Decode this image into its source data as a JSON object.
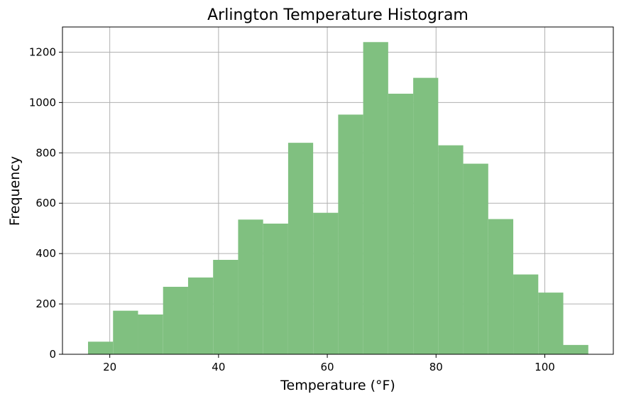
{
  "chart_data": {
    "type": "bar",
    "title": "Arlington Temperature Histogram",
    "xlabel": "Temperature (°F)",
    "ylabel": "Frequency",
    "xlim": [
      11.3,
      112.6
    ],
    "ylim": [
      0,
      1300
    ],
    "x_ticks": [
      20,
      40,
      60,
      80,
      100
    ],
    "y_ticks": [
      0,
      200,
      400,
      600,
      800,
      1000,
      1200
    ],
    "grid": true,
    "bar_color": "#80c080",
    "series": [
      {
        "bins": [
          {
            "x0": 16.0,
            "x1": 20.6,
            "count": 50
          },
          {
            "x0": 20.6,
            "x1": 25.2,
            "count": 173
          },
          {
            "x0": 25.2,
            "x1": 29.8,
            "count": 158
          },
          {
            "x0": 29.8,
            "x1": 34.4,
            "count": 268
          },
          {
            "x0": 34.4,
            "x1": 39.0,
            "count": 305
          },
          {
            "x0": 39.0,
            "x1": 43.6,
            "count": 375
          },
          {
            "x0": 43.6,
            "x1": 48.2,
            "count": 535
          },
          {
            "x0": 48.2,
            "x1": 52.8,
            "count": 519
          },
          {
            "x0": 52.8,
            "x1": 57.4,
            "count": 840
          },
          {
            "x0": 57.4,
            "x1": 62.0,
            "count": 562
          },
          {
            "x0": 62.0,
            "x1": 66.6,
            "count": 952
          },
          {
            "x0": 66.6,
            "x1": 71.2,
            "count": 1240
          },
          {
            "x0": 71.2,
            "x1": 75.8,
            "count": 1035
          },
          {
            "x0": 75.8,
            "x1": 80.4,
            "count": 1098
          },
          {
            "x0": 80.4,
            "x1": 85.0,
            "count": 830
          },
          {
            "x0": 85.0,
            "x1": 89.6,
            "count": 757
          },
          {
            "x0": 89.6,
            "x1": 94.2,
            "count": 537
          },
          {
            "x0": 94.2,
            "x1": 98.8,
            "count": 317
          },
          {
            "x0": 98.8,
            "x1": 103.4,
            "count": 245
          },
          {
            "x0": 103.4,
            "x1": 108.0,
            "count": 37
          }
        ]
      }
    ]
  }
}
